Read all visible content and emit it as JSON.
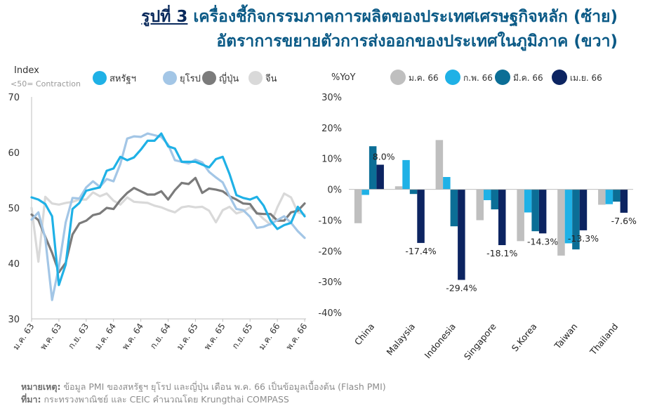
{
  "header": {
    "figure_label": "รูปที่ 3",
    "title_line1": "เครื่องชี้กิจกรรมภาคการผลิตของประเทศเศรษฐกิจหลัก (ซ้าย)",
    "title_line2": "อัตราการขยายตัวการส่งออกของประเทศในภูมิภาค (ขวา)"
  },
  "footer": {
    "note_label": "หมายเหตุ:",
    "note_text": "ข้อมูล PMI ของสหรัฐฯ ยุโรป และญี่ปุ่น เดือน พ.ค. 66 เป็นข้อมูลเบื้องต้น  (Flash PMI)",
    "source_label": "ที่มา:",
    "source_text": "กระทรวงพาณิชย์ และ CEIC คำนวณโดย Krungthai COMPASS"
  },
  "colors": {
    "title": "#0b5a86",
    "us": "#1fb1e6",
    "europe": "#a3c6e6",
    "japan": "#7b7b7b",
    "china": "#d9d9d9",
    "jan": "#bfbfbf",
    "feb": "#1fb1e6",
    "mar": "#0b6e96",
    "apr": "#0c2461"
  },
  "chart_data": [
    {
      "type": "line",
      "ylabel": "Index",
      "ylabel_note": "<50= Contraction",
      "ylim": [
        30,
        70
      ],
      "yticks": [
        30,
        40,
        50,
        60,
        70
      ],
      "x_tick_labels": [
        "ม.ค. 63",
        "พ.ค. 63",
        "ก.ย. 63",
        "ม.ค. 64",
        "พ.ค. 64",
        "ก.ย. 64",
        "ม.ค. 65",
        "พ.ค. 65",
        "ก.ย. 65",
        "ม.ค. 66",
        "พ.ค. 66"
      ],
      "x_tick_index": [
        0,
        4,
        8,
        12,
        16,
        20,
        24,
        28,
        32,
        36,
        40
      ],
      "n_points": 41,
      "legend_position": "top",
      "grid": false,
      "series": [
        {
          "name": "สหรัฐฯ",
          "color": "#1fb1e6",
          "values": [
            51.9,
            51.5,
            50.7,
            48.5,
            36.1,
            39.8,
            49.8,
            50.9,
            53.1,
            53.4,
            53.7,
            56.7,
            57.1,
            59.2,
            58.6,
            59.1,
            60.5,
            62.1,
            62.1,
            63.4,
            61.1,
            60.7,
            58.3,
            58.3,
            58.3,
            57.8,
            57.3,
            58.8,
            59.2,
            56.1,
            52.3,
            51.8,
            51.5,
            52.0,
            50.4,
            47.7,
            46.2,
            46.9,
            47.3,
            50.2,
            48.5
          ]
        },
        {
          "name": "ยุโรป",
          "color": "#a3c6e6",
          "values": [
            47.9,
            49.2,
            44.5,
            33.4,
            39.4,
            47.4,
            51.8,
            51.7,
            53.7,
            54.8,
            53.8,
            55.2,
            54.8,
            57.9,
            62.5,
            62.9,
            62.8,
            63.4,
            63.1,
            62.8,
            61.4,
            58.6,
            58.3,
            58.0,
            58.7,
            58.2,
            56.5,
            55.5,
            54.6,
            52.1,
            49.8,
            49.6,
            48.4,
            46.4,
            46.6,
            47.1,
            47.8,
            48.5,
            47.3,
            45.8,
            44.6
          ]
        },
        {
          "name": "ญี่ปุ่น",
          "color": "#7b7b7b",
          "values": [
            48.8,
            47.8,
            44.8,
            41.9,
            38.4,
            40.1,
            45.2,
            47.2,
            47.7,
            48.7,
            49.0,
            50.0,
            49.8,
            51.4,
            52.7,
            53.6,
            53.0,
            52.4,
            52.4,
            53.0,
            51.5,
            53.2,
            54.5,
            54.3,
            55.4,
            52.7,
            53.5,
            53.3,
            53.0,
            52.1,
            51.5,
            50.8,
            50.7,
            49.0,
            48.9,
            48.9,
            47.7,
            47.7,
            49.2,
            49.5,
            50.8
          ]
        },
        {
          "name": "จีน",
          "color": "#d9d9d9",
          "values": [
            50.0,
            40.3,
            52.0,
            50.8,
            50.6,
            50.9,
            51.1,
            51.5,
            51.5,
            52.8,
            52.1,
            52.6,
            51.3,
            50.6,
            51.9,
            51.1,
            51.0,
            50.9,
            50.4,
            50.1,
            49.6,
            49.2,
            50.1,
            50.3,
            50.1,
            50.2,
            49.5,
            47.4,
            49.6,
            50.2,
            49.0,
            49.4,
            50.1,
            49.2,
            48.0,
            47.0,
            50.1,
            52.6,
            51.9,
            49.2,
            48.8
          ]
        }
      ]
    },
    {
      "type": "bar",
      "ylabel": "%YoY",
      "ylim": [
        -40,
        30
      ],
      "yticks": [
        -40,
        -30,
        -20,
        -10,
        0,
        10,
        20,
        30
      ],
      "categories": [
        "China",
        "Malaysia",
        "Indonesia",
        "Singapore",
        "S.Korea",
        "Taiwan",
        "Thailand"
      ],
      "legend_position": "top",
      "grid": false,
      "series": [
        {
          "name": "ม.ค. 66",
          "color": "#bfbfbf",
          "values": [
            -11.0,
            1.0,
            16.0,
            -10.0,
            -16.8,
            -21.5,
            -5.0
          ]
        },
        {
          "name": "ก.พ. 66",
          "color": "#1fb1e6",
          "values": [
            -1.8,
            9.5,
            4.0,
            -3.5,
            -7.5,
            -17.5,
            -4.8
          ]
        },
        {
          "name": "มี.ค. 66",
          "color": "#0b6e96",
          "values": [
            14.0,
            -1.5,
            -12.0,
            -6.5,
            -13.6,
            -19.5,
            -4.0
          ]
        },
        {
          "name": "เม.ย. 66",
          "color": "#0c2461",
          "values": [
            8.0,
            -17.4,
            -29.4,
            -18.1,
            -14.3,
            -13.3,
            -7.6
          ]
        }
      ],
      "data_labels": [
        "8.0%",
        "-17.4%",
        "-29.4%",
        "-18.1%",
        "-14.3%",
        "-13.3%",
        "-7.6%"
      ]
    }
  ]
}
